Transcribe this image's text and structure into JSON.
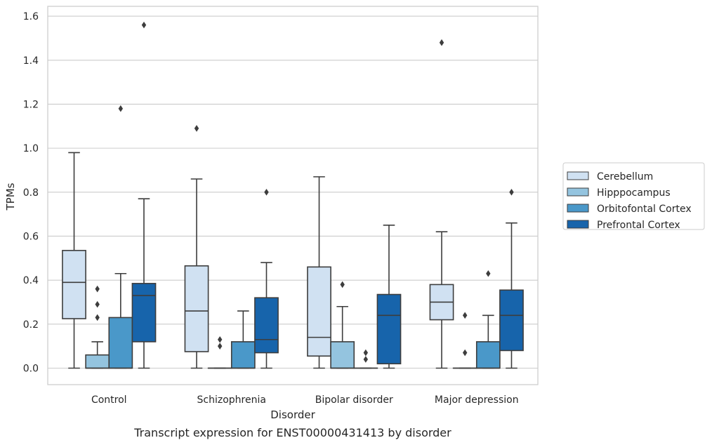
{
  "chart_data": {
    "type": "box",
    "caption": "Transcript expression for ENST00000431413 by disorder",
    "xlabel": "Disorder",
    "ylabel": "TPMs",
    "ylim": [
      -0.075,
      1.645
    ],
    "yticks": [
      0.0,
      0.2,
      0.4,
      0.6,
      0.8,
      1.0,
      1.2,
      1.4,
      1.6
    ],
    "ytick_labels": [
      "0.0",
      "0.2",
      "0.4",
      "0.6",
      "0.8",
      "1.0",
      "1.2",
      "1.4",
      "1.6"
    ],
    "grid": "horizontal",
    "legend_position": "right",
    "categories": [
      "Control",
      "Schizophrenia",
      "Bipolar disorder",
      "Major depression"
    ],
    "series": [
      {
        "name": "Cerebellum",
        "color": "#d0e1f2",
        "boxes": [
          {
            "whislo": 0.0,
            "q1": 0.225,
            "median": 0.39,
            "q3": 0.535,
            "whishi": 0.98,
            "fliers": []
          },
          {
            "whislo": 0.0,
            "q1": 0.075,
            "median": 0.26,
            "q3": 0.465,
            "whishi": 0.86,
            "fliers": [
              1.09
            ]
          },
          {
            "whislo": 0.0,
            "q1": 0.055,
            "median": 0.14,
            "q3": 0.46,
            "whishi": 0.87,
            "fliers": []
          },
          {
            "whislo": 0.0,
            "q1": 0.22,
            "median": 0.3,
            "q3": 0.38,
            "whishi": 0.62,
            "fliers": [
              1.48
            ]
          }
        ]
      },
      {
        "name": "Hipppocampus",
        "color": "#94c4df",
        "boxes": [
          {
            "whislo": 0.0,
            "q1": 0.0,
            "median": 0.0,
            "q3": 0.06,
            "whishi": 0.12,
            "fliers": [
              0.36,
              0.29,
              0.23
            ]
          },
          {
            "whislo": 0.0,
            "q1": 0.0,
            "median": 0.0,
            "q3": 0.0,
            "whishi": 0.0,
            "fliers": [
              0.13,
              0.1
            ]
          },
          {
            "whislo": 0.0,
            "q1": 0.0,
            "median": 0.0,
            "q3": 0.12,
            "whishi": 0.28,
            "fliers": [
              0.38
            ]
          },
          {
            "whislo": 0.0,
            "q1": 0.0,
            "median": 0.0,
            "q3": 0.0,
            "whishi": 0.0,
            "fliers": [
              0.24,
              0.07
            ]
          }
        ]
      },
      {
        "name": "Orbitofontal Cortex",
        "color": "#4a98c9",
        "boxes": [
          {
            "whislo": 0.0,
            "q1": 0.0,
            "median": 0.0,
            "q3": 0.23,
            "whishi": 0.43,
            "fliers": [
              1.18
            ]
          },
          {
            "whislo": 0.0,
            "q1": 0.0,
            "median": 0.0,
            "q3": 0.12,
            "whishi": 0.26,
            "fliers": []
          },
          {
            "whislo": 0.0,
            "q1": 0.0,
            "median": 0.0,
            "q3": 0.0,
            "whishi": 0.0,
            "fliers": [
              0.07,
              0.04
            ]
          },
          {
            "whislo": 0.0,
            "q1": 0.0,
            "median": 0.0,
            "q3": 0.12,
            "whishi": 0.24,
            "fliers": [
              0.43
            ]
          }
        ]
      },
      {
        "name": "Prefrontal Cortex",
        "color": "#1764ab",
        "boxes": [
          {
            "whislo": 0.0,
            "q1": 0.12,
            "median": 0.33,
            "q3": 0.385,
            "whishi": 0.77,
            "fliers": [
              1.56
            ]
          },
          {
            "whislo": 0.0,
            "q1": 0.07,
            "median": 0.13,
            "q3": 0.32,
            "whishi": 0.48,
            "fliers": [
              0.8
            ]
          },
          {
            "whislo": 0.0,
            "q1": 0.02,
            "median": 0.24,
            "q3": 0.335,
            "whishi": 0.65,
            "fliers": []
          },
          {
            "whislo": 0.0,
            "q1": 0.08,
            "median": 0.24,
            "q3": 0.355,
            "whishi": 0.66,
            "fliers": [
              0.8
            ]
          }
        ]
      }
    ]
  }
}
